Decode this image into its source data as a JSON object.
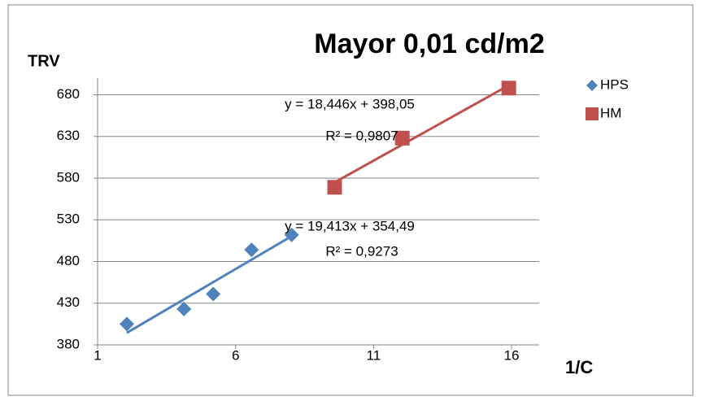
{
  "chart_data": {
    "type": "scatter",
    "title": "Mayor 0,01 cd/m2",
    "y_label": "TRV",
    "x_label": "1/C",
    "xlim": [
      1,
      17
    ],
    "xticks": [
      1,
      6,
      11,
      16
    ],
    "ylim": [
      380,
      700
    ],
    "yticks": [
      380,
      430,
      480,
      530,
      580,
      630,
      680
    ],
    "grid": true,
    "legend": "right",
    "series": [
      {
        "name": "HPS",
        "color": "#4f81bd",
        "marker": "diamond",
        "x": [
          2.06,
          4.13,
          5.19,
          6.58,
          8.03
        ],
        "values": [
          405,
          423,
          441,
          494,
          512
        ],
        "trendline": {
          "slope": 19.413,
          "intercept": 354.49,
          "equation": "y = 19,413x + 354,49",
          "r2": 0.9273,
          "r2_label": "R² = 0,9273"
        }
      },
      {
        "name": "HM",
        "color": "#c0504d",
        "marker": "square",
        "x": [
          9.59,
          12.04,
          15.9
        ],
        "values": [
          569,
          628,
          688
        ],
        "trendline": {
          "slope": 18.446,
          "intercept": 398.05,
          "equation": "y = 18,446x + 398,05",
          "r2": 0.9807,
          "r2_label": "R² = 0,9807"
        }
      }
    ]
  }
}
